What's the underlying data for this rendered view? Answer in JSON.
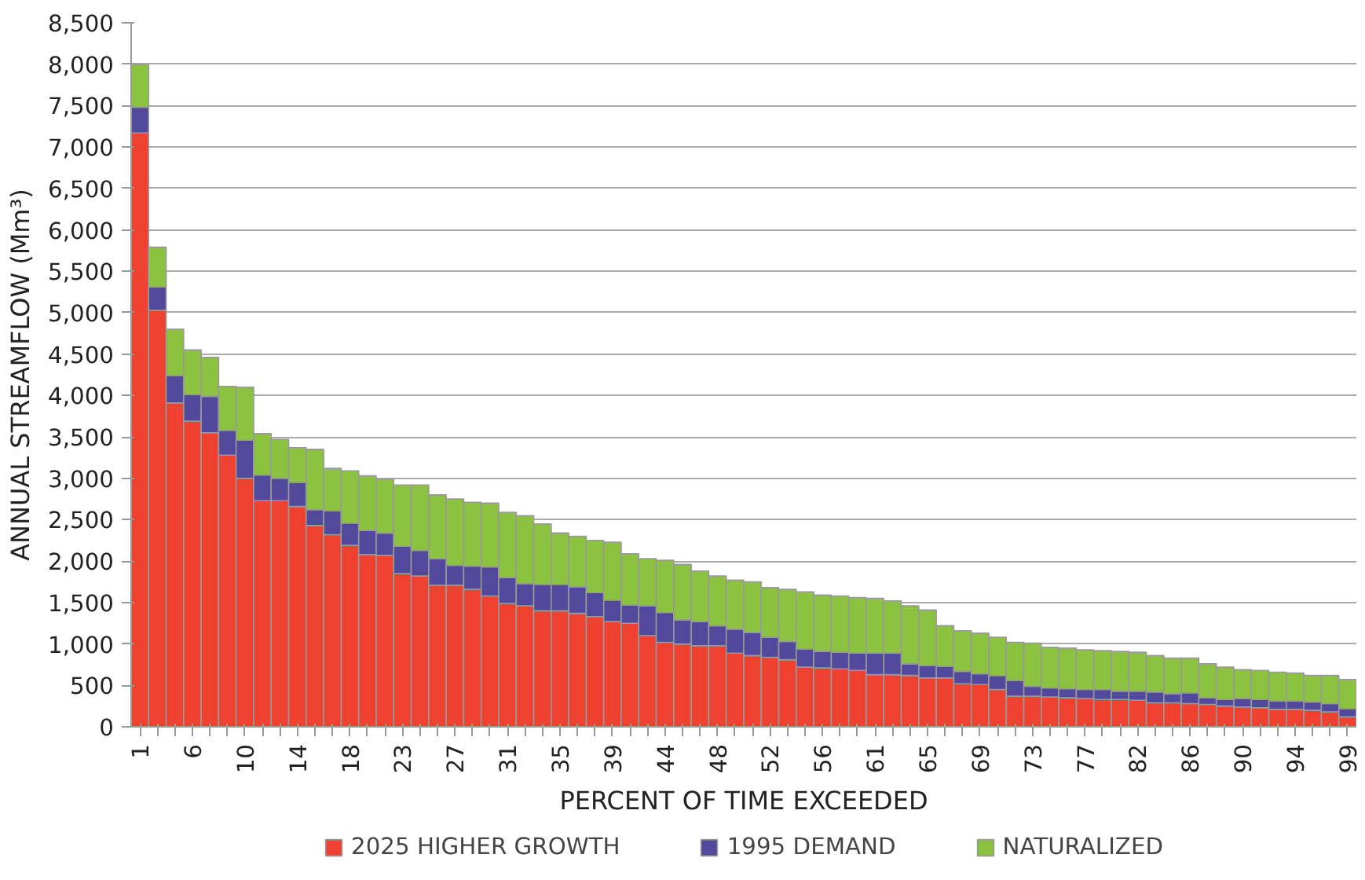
{
  "chart_data": {
    "type": "bar",
    "stacked": true,
    "xlabel": "PERCENT OF TIME EXCEEDED",
    "ylabel": "ANNUAL STREAMFLOW (Mm³)",
    "categories": [
      "1",
      null,
      null,
      "6",
      null,
      null,
      "10",
      null,
      null,
      "14",
      null,
      null,
      "18",
      null,
      null,
      "23",
      null,
      null,
      "27",
      null,
      null,
      "31",
      null,
      null,
      "35",
      null,
      null,
      "39",
      null,
      null,
      "44",
      null,
      null,
      "48",
      null,
      null,
      "52",
      null,
      null,
      "56",
      null,
      null,
      "61",
      null,
      null,
      "65",
      null,
      null,
      "69",
      null,
      null,
      "73",
      null,
      null,
      "77",
      null,
      null,
      "82",
      null,
      null,
      "86",
      null,
      null,
      "90",
      null,
      null,
      "94",
      null,
      null,
      "99"
    ],
    "series": [
      {
        "name": "2025 HIGHER GROWTH",
        "color": "#ee4130",
        "values": [
          7170,
          5030,
          3910,
          3690,
          3550,
          3280,
          3000,
          2730,
          2730,
          2660,
          2430,
          2320,
          2190,
          2080,
          2070,
          1850,
          1820,
          1710,
          1710,
          1660,
          1580,
          1490,
          1460,
          1400,
          1400,
          1370,
          1330,
          1270,
          1250,
          1100,
          1020,
          1000,
          980,
          980,
          890,
          860,
          840,
          810,
          720,
          710,
          700,
          680,
          630,
          630,
          620,
          590,
          590,
          520,
          510,
          450,
          370,
          370,
          360,
          350,
          340,
          330,
          330,
          320,
          290,
          290,
          280,
          270,
          250,
          240,
          230,
          210,
          210,
          200,
          180,
          120
        ]
      },
      {
        "name": "1995 DEMAND",
        "color": "#51499c",
        "values": [
          310,
          280,
          330,
          320,
          440,
          300,
          460,
          310,
          270,
          290,
          190,
          290,
          270,
          290,
          270,
          330,
          310,
          320,
          240,
          280,
          350,
          310,
          270,
          320,
          320,
          320,
          290,
          260,
          220,
          360,
          360,
          290,
          290,
          240,
          290,
          280,
          240,
          220,
          220,
          200,
          200,
          210,
          260,
          260,
          140,
          150,
          140,
          150,
          130,
          170,
          190,
          120,
          110,
          110,
          110,
          120,
          100,
          110,
          130,
          110,
          130,
          80,
          80,
          100,
          100,
          100,
          100,
          100,
          100,
          100
        ]
      },
      {
        "name": "NATURALIZED",
        "color": "#8bc240",
        "values": [
          520,
          480,
          560,
          540,
          470,
          530,
          640,
          500,
          470,
          420,
          730,
          510,
          630,
          660,
          650,
          740,
          790,
          770,
          800,
          770,
          770,
          790,
          820,
          730,
          620,
          610,
          630,
          700,
          620,
          570,
          630,
          670,
          610,
          600,
          590,
          610,
          600,
          630,
          690,
          680,
          680,
          670,
          660,
          630,
          700,
          670,
          490,
          490,
          490,
          460,
          460,
          520,
          490,
          490,
          480,
          470,
          480,
          470,
          440,
          430,
          420,
          410,
          390,
          350,
          350,
          350,
          340,
          320,
          340,
          350
        ]
      }
    ],
    "ylim": [
      0,
      8500
    ],
    "yticks": [
      0,
      500,
      {
        "value": 1000,
        "label": "1,000"
      },
      {
        "value": 1500,
        "label": "1,500"
      },
      {
        "value": 2000,
        "label": "2,000"
      },
      {
        "value": 2500,
        "label": "2,500"
      },
      {
        "value": 3000,
        "label": "3,000"
      },
      {
        "value": 3500,
        "label": "3,500"
      },
      {
        "value": 4000,
        "label": "4,000"
      },
      {
        "value": 4500,
        "label": "4,500"
      },
      {
        "value": 5000,
        "label": "5,000"
      },
      {
        "value": 5500,
        "label": "5,500"
      },
      {
        "value": 6000,
        "label": "6,000"
      },
      {
        "value": 6500,
        "label": "6,500"
      },
      {
        "value": 7000,
        "label": "7,000"
      },
      {
        "value": 7500,
        "label": "7,500"
      },
      {
        "value": 8000,
        "label": "8,000"
      },
      {
        "value": 8500,
        "label": "8,500"
      }
    ],
    "grid": "y",
    "legend": "bottom"
  }
}
